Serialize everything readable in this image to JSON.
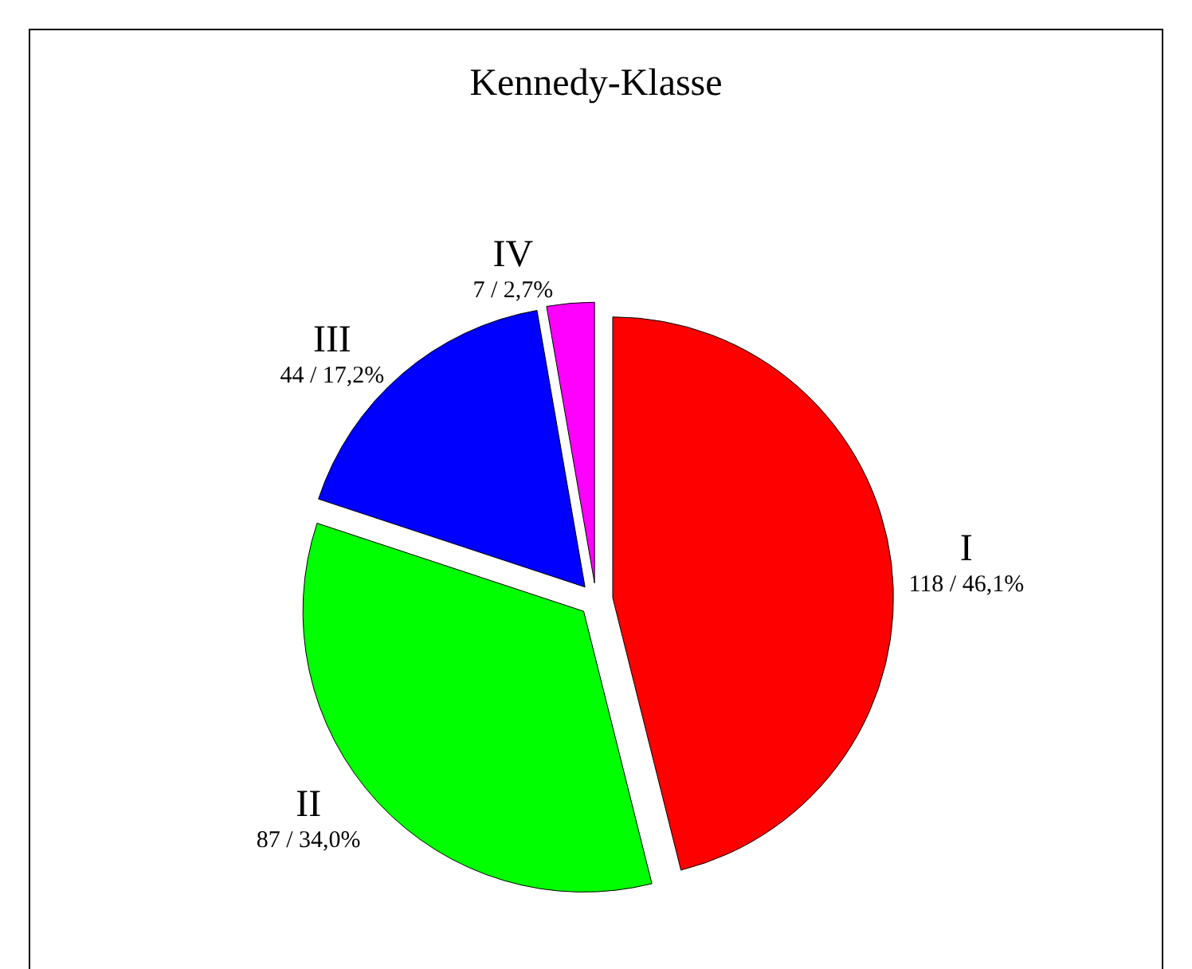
{
  "chart_data": {
    "type": "pie",
    "title": "Kennedy-Klasse",
    "categories": [
      "I",
      "II",
      "III",
      "IV"
    ],
    "values": [
      118,
      87,
      44,
      7
    ],
    "value_labels": [
      "118 / 46,1%",
      "87 / 34,0%",
      "44 / 17,2%",
      "7 / 2,7%"
    ],
    "colors": [
      "#ff0000",
      "#00ff00",
      "#0000ff",
      "#ff00ff"
    ],
    "legend": false
  }
}
